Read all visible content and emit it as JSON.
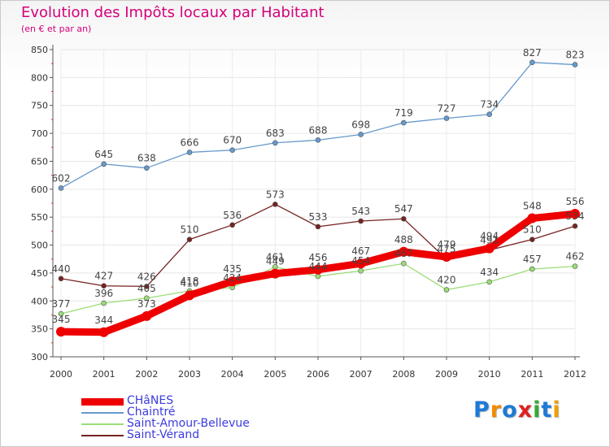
{
  "chart_data": {
    "type": "line",
    "title": "Evolution des Impôts locaux par Habitant",
    "subtitle": "(en € et par an)",
    "xlabel": "",
    "ylabel": "",
    "categories": [
      "2000",
      "2001",
      "2002",
      "2003",
      "2004",
      "2005",
      "2006",
      "2007",
      "2008",
      "2009",
      "2010",
      "2011",
      "2012"
    ],
    "ylim": [
      300,
      850
    ],
    "yticks": [
      300,
      350,
      400,
      450,
      500,
      550,
      600,
      650,
      700,
      750,
      800,
      850
    ],
    "grid": true,
    "legend_position": "bottom-left",
    "series": [
      {
        "name": "CHâNES",
        "color": "#ee0000",
        "style": "thick",
        "values": [
          345,
          344,
          373,
          410,
          435,
          449,
          456,
          467,
          488,
          479,
          494,
          548,
          556
        ],
        "labels": [
          "345",
          "344",
          "373",
          "410",
          "435",
          "449",
          "456",
          "467",
          "488",
          "479",
          "494",
          "548",
          "556"
        ]
      },
      {
        "name": "Chaintré",
        "color": "#6699cc",
        "style": "thin",
        "values": [
          602,
          645,
          638,
          666,
          670,
          683,
          688,
          698,
          719,
          727,
          734,
          827,
          823
        ],
        "labels": [
          "602",
          "645",
          "638",
          "666",
          "670",
          "683",
          "688",
          "698",
          "719",
          "727",
          "734",
          "827",
          "823"
        ]
      },
      {
        "name": "Saint-Amour-Bellevue",
        "color": "#99dd77",
        "style": "thin",
        "values": [
          377,
          396,
          405,
          418,
          424,
          461,
          444,
          454,
          467,
          420,
          434,
          457,
          462
        ],
        "labels": [
          "377",
          "396",
          "405",
          "418",
          "424",
          "461",
          "444",
          "454",
          "467",
          "420",
          "434",
          "457",
          "462"
        ]
      },
      {
        "name": "Saint-Vérand",
        "color": "#772222",
        "style": "thin",
        "values": [
          440,
          427,
          426,
          510,
          536,
          573,
          533,
          543,
          547,
          475,
          491,
          510,
          534
        ],
        "labels": [
          "440",
          "427",
          "426",
          "510",
          "536",
          "573",
          "533",
          "543",
          "547",
          "475",
          "491",
          "510",
          "534"
        ]
      }
    ]
  },
  "logo": {
    "text": "Proxiti",
    "letters": [
      "P",
      "r",
      "o",
      "x",
      "i",
      "t",
      "i"
    ],
    "colors": [
      "#1e7ad6",
      "#f08c00",
      "#1e7ad6",
      "#e02020",
      "#38a838",
      "#1e7ad6",
      "#f0a000"
    ]
  }
}
